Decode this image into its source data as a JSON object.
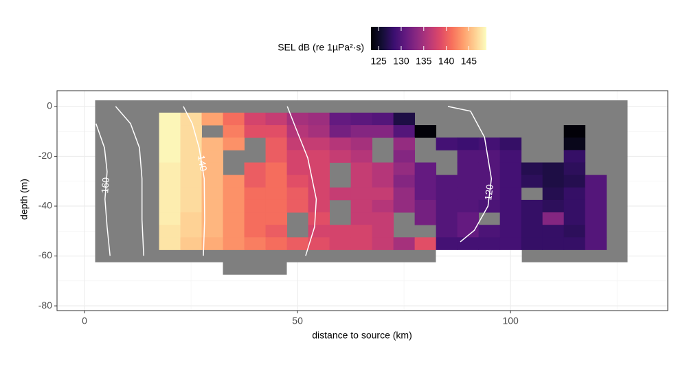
{
  "chart_data": {
    "type": "heatmap",
    "x_label": "distance to source (km)",
    "y_label": "depth (m)",
    "legend_title": "SEL dB (re 1µPa²·s)",
    "x": [
      20,
      25,
      30,
      35,
      40,
      45,
      50,
      55,
      60,
      65,
      70,
      75,
      80,
      85,
      90,
      95,
      100,
      105,
      110,
      115,
      120
    ],
    "y": [
      -5,
      -10,
      -15,
      -20,
      -25,
      -30,
      -35,
      -40,
      -45,
      -50,
      -55
    ],
    "z": [
      [
        148.5,
        147,
        144,
        141,
        138,
        137,
        135,
        134.5,
        131,
        130.5,
        130,
        126.5,
        null,
        null,
        null,
        null,
        null,
        null,
        null,
        null,
        null
      ],
      [
        148.5,
        147,
        null,
        142,
        139,
        139,
        136,
        135,
        132,
        133,
        133,
        130,
        123.5,
        null,
        null,
        null,
        null,
        null,
        null,
        123.5,
        null
      ],
      [
        148.5,
        147,
        145,
        143,
        null,
        140,
        137,
        137,
        136,
        135,
        null,
        134,
        null,
        129,
        128.5,
        129,
        128,
        null,
        null,
        124.5,
        null
      ],
      [
        148.5,
        147,
        145,
        null,
        null,
        140,
        138,
        138,
        137,
        136,
        null,
        133,
        null,
        null,
        130,
        130,
        129,
        null,
        null,
        128,
        null
      ],
      [
        148,
        147,
        145,
        null,
        140,
        141,
        138,
        138,
        null,
        137,
        136,
        134,
        131,
        null,
        130,
        130,
        129,
        127,
        126.5,
        127.5,
        null
      ],
      [
        148,
        147,
        145,
        143,
        140,
        141,
        139,
        138,
        null,
        137,
        136,
        133,
        131,
        130,
        130,
        130,
        129,
        127.5,
        126.5,
        127,
        130
      ],
      [
        148,
        147,
        145,
        143,
        141,
        141,
        140,
        138,
        137,
        137,
        137,
        134,
        131,
        130,
        130,
        130,
        129,
        null,
        127,
        128,
        130
      ],
      [
        148,
        147,
        145,
        143,
        141,
        141,
        140,
        138,
        null,
        137,
        136,
        134,
        132,
        130,
        130,
        129.5,
        129,
        128,
        127.5,
        128,
        130
      ],
      [
        148,
        146.5,
        145,
        143,
        141,
        141,
        null,
        139,
        null,
        137,
        137,
        null,
        132,
        130,
        131,
        null,
        129,
        128,
        133,
        128,
        130
      ],
      [
        147.5,
        146.5,
        145,
        143,
        141,
        140,
        null,
        138,
        138,
        138,
        137,
        null,
        null,
        130,
        131,
        129.5,
        129,
        128,
        128,
        127.5,
        130
      ],
      [
        147.5,
        146,
        144.5,
        143,
        142,
        141,
        140,
        139,
        138,
        138,
        137,
        135,
        139,
        129,
        129,
        129,
        129,
        128,
        128,
        128,
        130
      ]
    ],
    "contours": [
      {
        "level": 160,
        "x": [
          2.7,
          4.7,
          5.3,
          4.8,
          5.3,
          6.0,
          null,
          7.3,
          10.8,
          12.9,
          13.5,
          13.5,
          13.9
        ],
        "y": [
          -6.9,
          -16.6,
          -26.2,
          -37.2,
          -48.3,
          -59.9,
          null,
          0,
          -6.9,
          -16.6,
          -29,
          -45.5,
          -59.9
        ]
      },
      {
        "level": 140,
        "x": [
          23.2,
          25.3,
          26.9,
          28.1,
          28.2,
          27.9,
          null,
          47.6,
          49.5,
          52.4,
          54.4,
          54.0,
          51.9
        ],
        "y": [
          0,
          -6.9,
          -16.6,
          -29,
          -45.5,
          -59.9,
          null,
          0,
          -8.3,
          -20.7,
          -37.2,
          -48.3,
          -59.9
        ]
      },
      {
        "level": 120,
        "x": [
          85.3,
          90.6,
          93.9,
          95.5,
          94.7,
          91.5,
          88.2
        ],
        "y": [
          0,
          -1.9,
          -12.4,
          -29,
          -40,
          -49.7,
          -54.3
        ]
      }
    ],
    "contour_color": "#ffffff",
    "xlim": [
      -6.45,
      136.9
    ],
    "ylim": [
      -81.9,
      6.3
    ],
    "xticks": [
      0,
      50,
      100
    ],
    "yticks": [
      0,
      -20,
      -40,
      -60,
      -80
    ],
    "clim": [
      123.3,
      148.9
    ],
    "cticks": [
      125,
      130,
      135,
      140,
      145
    ],
    "palette": [
      "#000004",
      "#140e36",
      "#3b0f70",
      "#641a80",
      "#8c2981",
      "#b73779",
      "#de4968",
      "#f7705c",
      "#fe9f6d",
      "#fecf92",
      "#fcfdbf"
    ],
    "grid": true
  }
}
